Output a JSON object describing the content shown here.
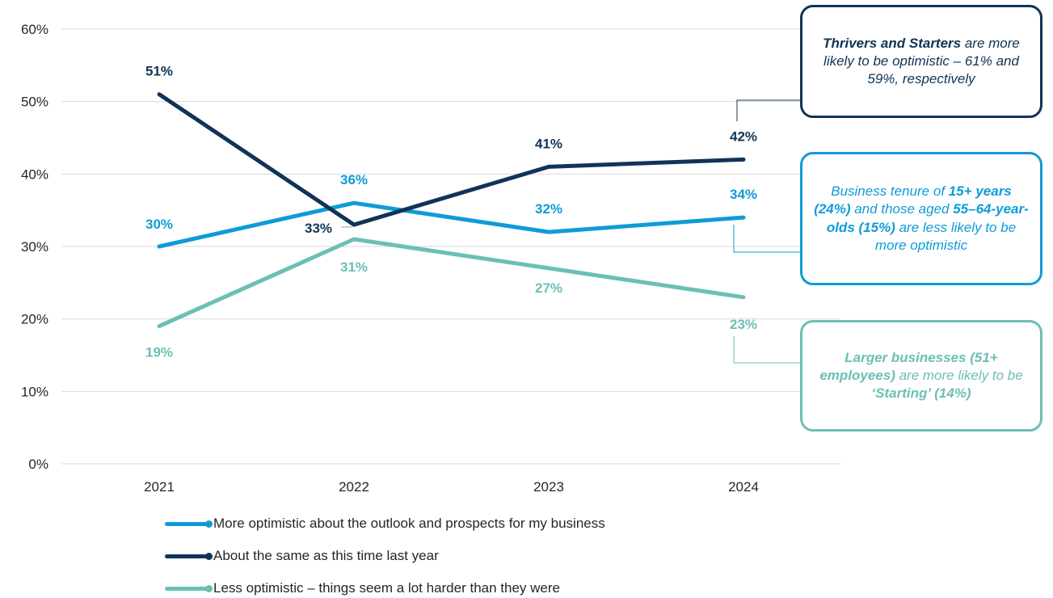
{
  "colors": {
    "more_optimistic": "#0f9bd7",
    "about_same": "#0f3457",
    "less_optimistic": "#6bbfb4",
    "grid": "#d9d9d9",
    "axis_text": "#262626"
  },
  "chart_data": {
    "type": "line",
    "x": [
      "2021",
      "2022",
      "2023",
      "2024"
    ],
    "ylim": [
      0,
      60
    ],
    "yticks": [
      "0%",
      "10%",
      "20%",
      "30%",
      "40%",
      "50%",
      "60%"
    ],
    "grid": true,
    "legend_position": "bottom",
    "series": [
      {
        "key": "more_optimistic",
        "name": "More optimistic about the outlook and prospects for my business",
        "values": [
          30,
          36,
          32,
          34
        ],
        "labels": [
          "30%",
          "36%",
          "32%",
          "34%"
        ]
      },
      {
        "key": "about_same",
        "name": "About the same as this time last year",
        "values": [
          51,
          33,
          41,
          42
        ],
        "labels": [
          "51%",
          "33%",
          "41%",
          "42%"
        ]
      },
      {
        "key": "less_optimistic",
        "name": "Less optimistic – things seem a lot harder than they were",
        "values": [
          19,
          31,
          27,
          23
        ],
        "labels": [
          "19%",
          "31%",
          "27%",
          "23%"
        ]
      }
    ]
  },
  "callouts": {
    "thrivers": {
      "bold": "Thrivers and Starters",
      "rest": " are more likely to be optimistic – 61% and 59%, respectively"
    },
    "tenure": {
      "t1": "Business tenure of ",
      "b1": "15+ years (24%)",
      "t2": " and those aged ",
      "b2": "55–64-year-olds (15%)",
      "t3": " are less likely to be more optimistic"
    },
    "larger": {
      "b1": "Larger businesses (51+ employees)",
      "t1": " are more likely to be ",
      "b2": "‘Starting’ (14%)"
    }
  }
}
